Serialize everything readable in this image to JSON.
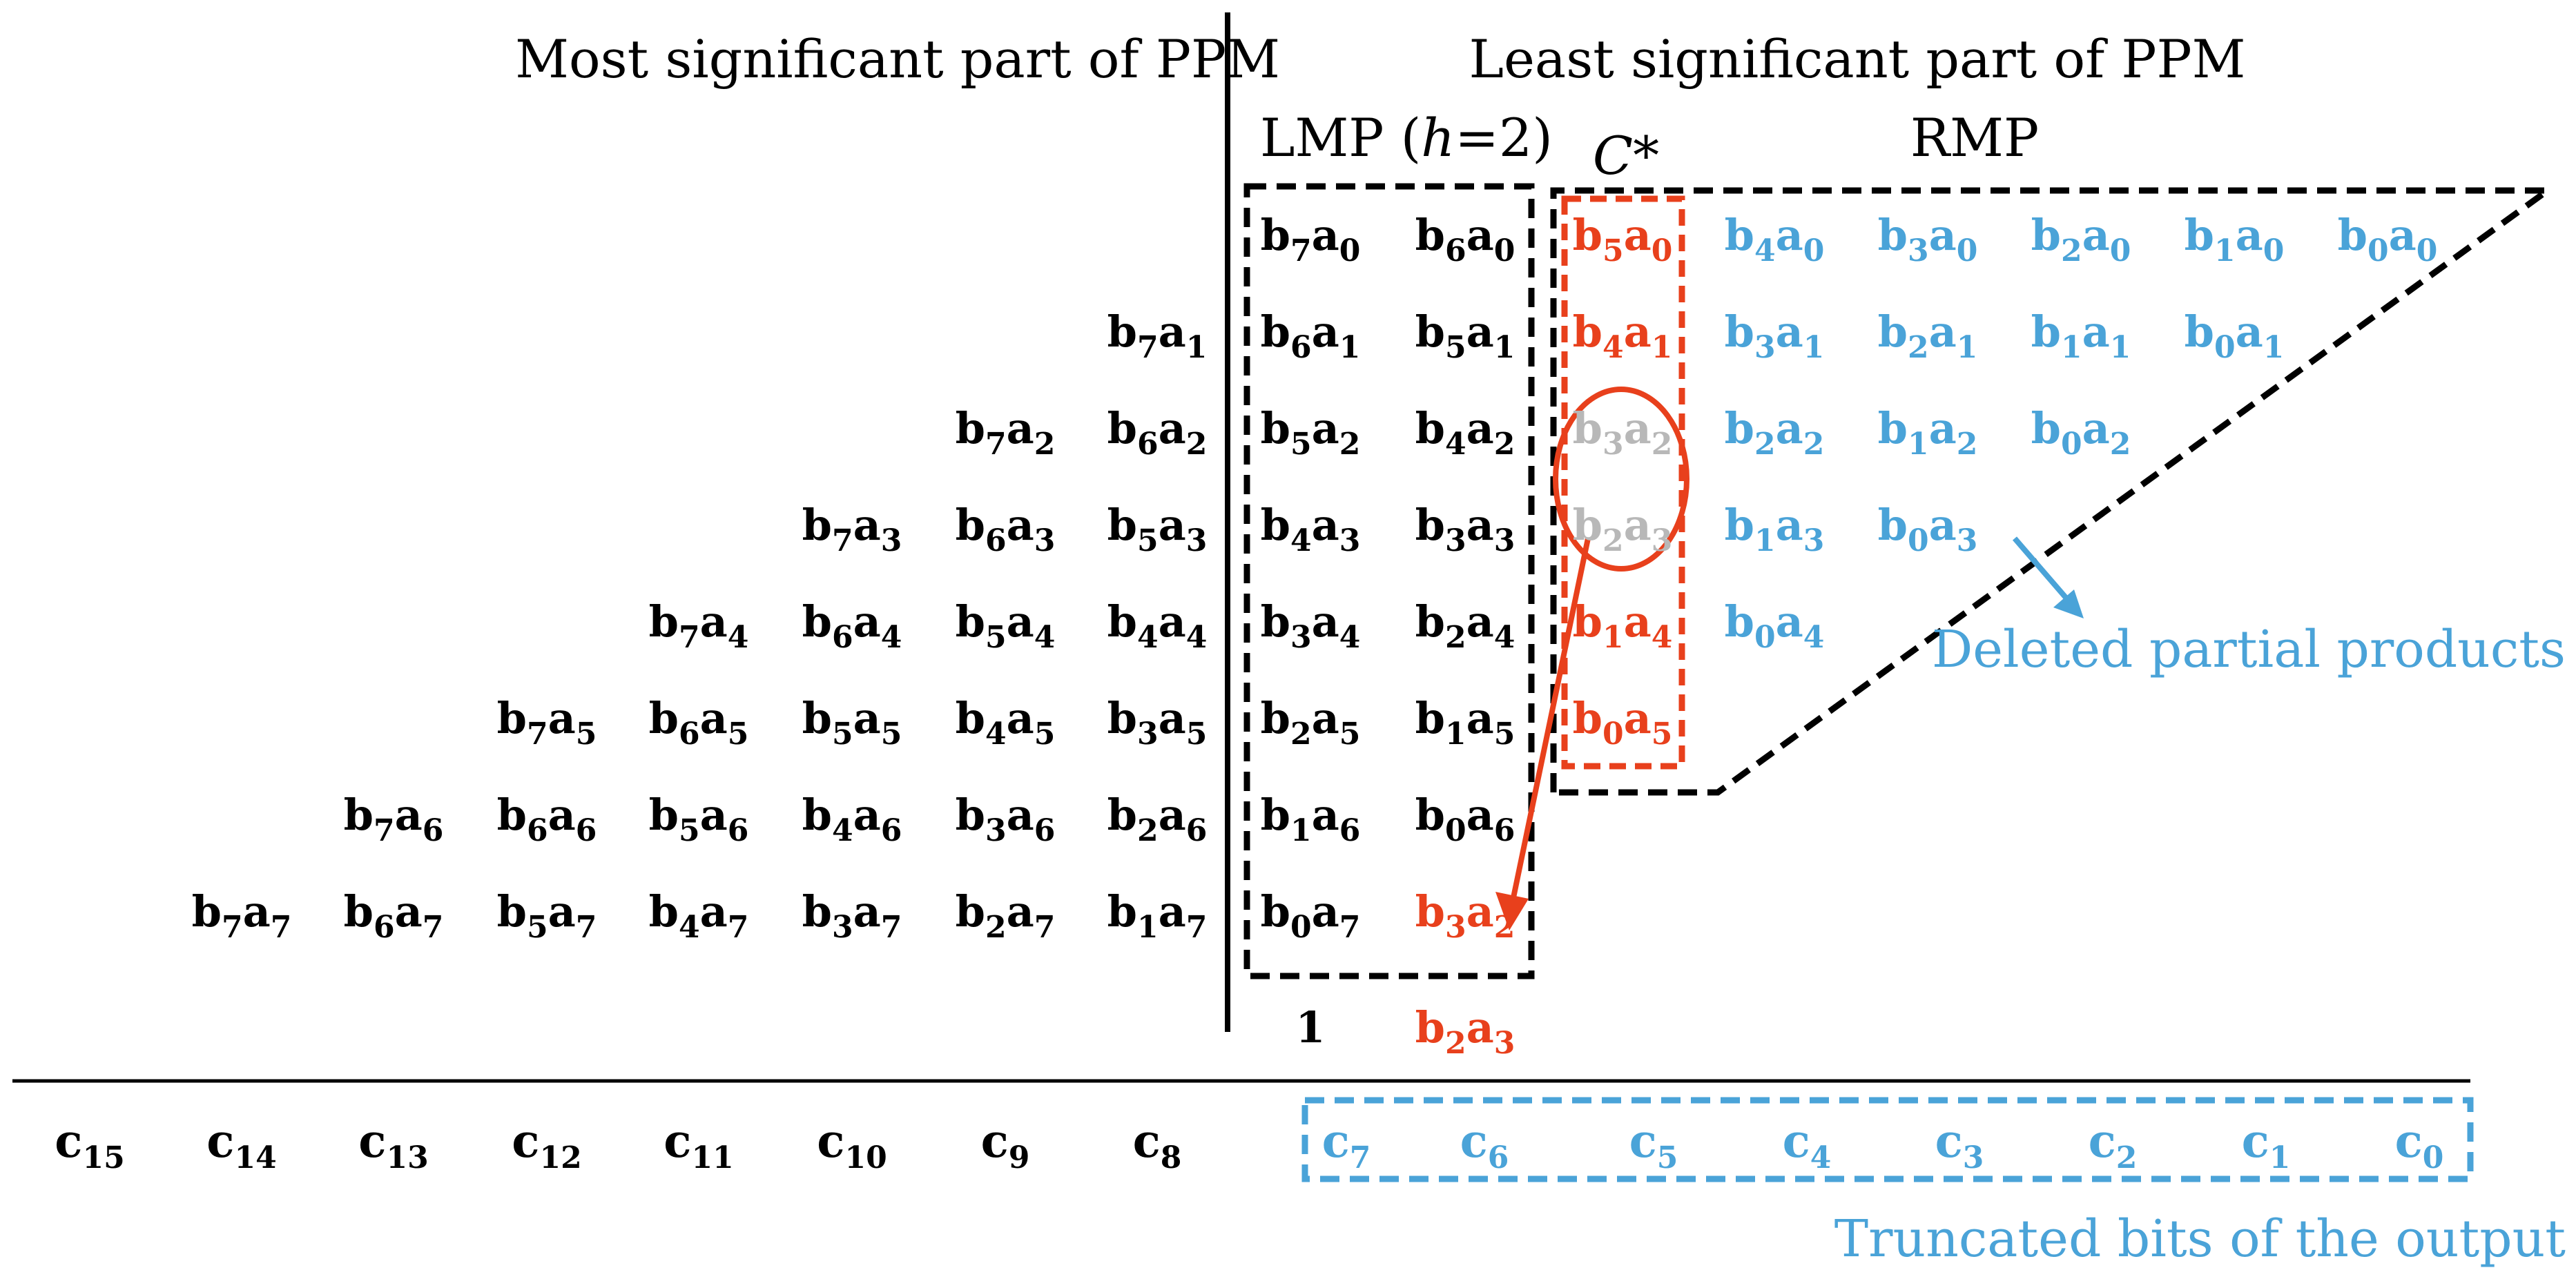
{
  "headers": {
    "most_significant": "Most significant part of PPM",
    "least_significant": "Least significant part of PPM",
    "lmp_prefix": "LMP (",
    "lmp_h": "h",
    "lmp_suffix": "=2)",
    "rmp": "RMP",
    "c_star": "C*"
  },
  "labels": {
    "deleted": "Deleted partial products",
    "truncated": "Truncated bits of the output"
  },
  "colors": {
    "black": "#000000",
    "orange": "#e8401c",
    "blue": "#4aa3d8",
    "gray": "#b8b8b8"
  },
  "matrix": {
    "rows": [
      {
        "a": 0,
        "cells": [
          {
            "b": 7,
            "a": 0,
            "c": "black"
          },
          {
            "b": 6,
            "a": 0,
            "c": "black"
          },
          {
            "b": 5,
            "a": 0,
            "c": "orange"
          },
          {
            "b": 4,
            "a": 0,
            "c": "blue"
          },
          {
            "b": 3,
            "a": 0,
            "c": "blue"
          },
          {
            "b": 2,
            "a": 0,
            "c": "blue"
          },
          {
            "b": 1,
            "a": 0,
            "c": "blue"
          },
          {
            "b": 0,
            "a": 0,
            "c": "blue"
          }
        ]
      },
      {
        "a": 1,
        "cells": [
          {
            "b": 7,
            "a": 1,
            "c": "black"
          },
          {
            "b": 6,
            "a": 1,
            "c": "black"
          },
          {
            "b": 5,
            "a": 1,
            "c": "black"
          },
          {
            "b": 4,
            "a": 1,
            "c": "orange"
          },
          {
            "b": 3,
            "a": 1,
            "c": "blue"
          },
          {
            "b": 2,
            "a": 1,
            "c": "blue"
          },
          {
            "b": 1,
            "a": 1,
            "c": "blue"
          },
          {
            "b": 0,
            "a": 1,
            "c": "blue"
          }
        ]
      },
      {
        "a": 2,
        "cells": [
          {
            "b": 7,
            "a": 2,
            "c": "black"
          },
          {
            "b": 6,
            "a": 2,
            "c": "black"
          },
          {
            "b": 5,
            "a": 2,
            "c": "black"
          },
          {
            "b": 4,
            "a": 2,
            "c": "black"
          },
          {
            "b": 3,
            "a": 2,
            "c": "gray"
          },
          {
            "b": 2,
            "a": 2,
            "c": "blue"
          },
          {
            "b": 1,
            "a": 2,
            "c": "blue"
          },
          {
            "b": 0,
            "a": 2,
            "c": "blue"
          }
        ]
      },
      {
        "a": 3,
        "cells": [
          {
            "b": 7,
            "a": 3,
            "c": "black"
          },
          {
            "b": 6,
            "a": 3,
            "c": "black"
          },
          {
            "b": 5,
            "a": 3,
            "c": "black"
          },
          {
            "b": 4,
            "a": 3,
            "c": "black"
          },
          {
            "b": 3,
            "a": 3,
            "c": "black"
          },
          {
            "b": 2,
            "a": 3,
            "c": "gray"
          },
          {
            "b": 1,
            "a": 3,
            "c": "blue"
          },
          {
            "b": 0,
            "a": 3,
            "c": "blue"
          }
        ]
      },
      {
        "a": 4,
        "cells": [
          {
            "b": 7,
            "a": 4,
            "c": "black"
          },
          {
            "b": 6,
            "a": 4,
            "c": "black"
          },
          {
            "b": 5,
            "a": 4,
            "c": "black"
          },
          {
            "b": 4,
            "a": 4,
            "c": "black"
          },
          {
            "b": 3,
            "a": 4,
            "c": "black"
          },
          {
            "b": 2,
            "a": 4,
            "c": "black"
          },
          {
            "b": 1,
            "a": 4,
            "c": "orange"
          },
          {
            "b": 0,
            "a": 4,
            "c": "blue"
          }
        ]
      },
      {
        "a": 5,
        "cells": [
          {
            "b": 7,
            "a": 5,
            "c": "black"
          },
          {
            "b": 6,
            "a": 5,
            "c": "black"
          },
          {
            "b": 5,
            "a": 5,
            "c": "black"
          },
          {
            "b": 4,
            "a": 5,
            "c": "black"
          },
          {
            "b": 3,
            "a": 5,
            "c": "black"
          },
          {
            "b": 2,
            "a": 5,
            "c": "black"
          },
          {
            "b": 1,
            "a": 5,
            "c": "black"
          },
          {
            "b": 0,
            "a": 5,
            "c": "orange"
          }
        ]
      },
      {
        "a": 6,
        "cells": [
          {
            "b": 7,
            "a": 6,
            "c": "black"
          },
          {
            "b": 6,
            "a": 6,
            "c": "black"
          },
          {
            "b": 5,
            "a": 6,
            "c": "black"
          },
          {
            "b": 4,
            "a": 6,
            "c": "black"
          },
          {
            "b": 3,
            "a": 6,
            "c": "black"
          },
          {
            "b": 2,
            "a": 6,
            "c": "black"
          },
          {
            "b": 1,
            "a": 6,
            "c": "black"
          },
          {
            "b": 0,
            "a": 6,
            "c": "black"
          }
        ]
      },
      {
        "a": 7,
        "cells": [
          {
            "b": 7,
            "a": 7,
            "c": "black"
          },
          {
            "b": 6,
            "a": 7,
            "c": "black"
          },
          {
            "b": 5,
            "a": 7,
            "c": "black"
          },
          {
            "b": 4,
            "a": 7,
            "c": "black"
          },
          {
            "b": 3,
            "a": 7,
            "c": "black"
          },
          {
            "b": 2,
            "a": 7,
            "c": "black"
          },
          {
            "b": 1,
            "a": 7,
            "c": "black"
          },
          {
            "b": 0,
            "a": 7,
            "c": "black"
          }
        ]
      }
    ],
    "moved": {
      "b": 3,
      "a": 2,
      "c": "orange"
    },
    "extra_row": [
      {
        "text": "1",
        "c": "black"
      },
      {
        "b": 2,
        "a": 3,
        "c": "orange"
      }
    ]
  },
  "outputs": [
    {
      "i": 15,
      "c": "black"
    },
    {
      "i": 14,
      "c": "black"
    },
    {
      "i": 13,
      "c": "black"
    },
    {
      "i": 12,
      "c": "black"
    },
    {
      "i": 11,
      "c": "black"
    },
    {
      "i": 10,
      "c": "black"
    },
    {
      "i": 9,
      "c": "black"
    },
    {
      "i": 8,
      "c": "black"
    },
    {
      "i": 7,
      "c": "blue"
    },
    {
      "i": 6,
      "c": "blue"
    },
    {
      "i": 5,
      "c": "blue"
    },
    {
      "i": 4,
      "c": "blue"
    },
    {
      "i": 3,
      "c": "blue"
    },
    {
      "i": 2,
      "c": "blue"
    },
    {
      "i": 1,
      "c": "blue"
    },
    {
      "i": 0,
      "c": "blue"
    }
  ]
}
